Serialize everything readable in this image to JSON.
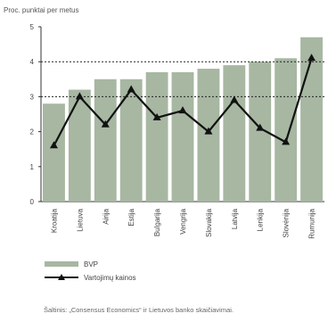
{
  "chart_data": {
    "type": "bar",
    "ylabel": "Proc. punktai per metus",
    "source": "Šaltinis: „Consensus Economics“ ir Lietuvos banko skaičiavimai.",
    "ylim": [
      0,
      5
    ],
    "yticks": [
      "0",
      "1",
      "2",
      "3",
      "4",
      "5"
    ],
    "categories": [
      "Kroatija",
      "Lietuva",
      "Airija",
      "Estija",
      "Bulgarija",
      "Vengrija",
      "Slovakija",
      "Latvija",
      "Lenkija",
      "Slovėnija",
      "Rumunija"
    ],
    "series": [
      {
        "name": "BVP",
        "kind": "bar",
        "color": "#a7b7a2",
        "values": [
          2.8,
          3.2,
          3.5,
          3.5,
          3.7,
          3.7,
          3.8,
          3.9,
          4.0,
          4.1,
          4.7
        ]
      },
      {
        "name": "Vartojimų kainos",
        "kind": "line",
        "color": "#111111",
        "values": [
          1.6,
          3.0,
          2.2,
          3.2,
          2.4,
          2.6,
          2.0,
          2.9,
          2.1,
          1.7,
          4.1
        ]
      }
    ],
    "reference_lines": [
      3,
      4
    ],
    "grid": false,
    "legend_position": "bottom-left"
  }
}
